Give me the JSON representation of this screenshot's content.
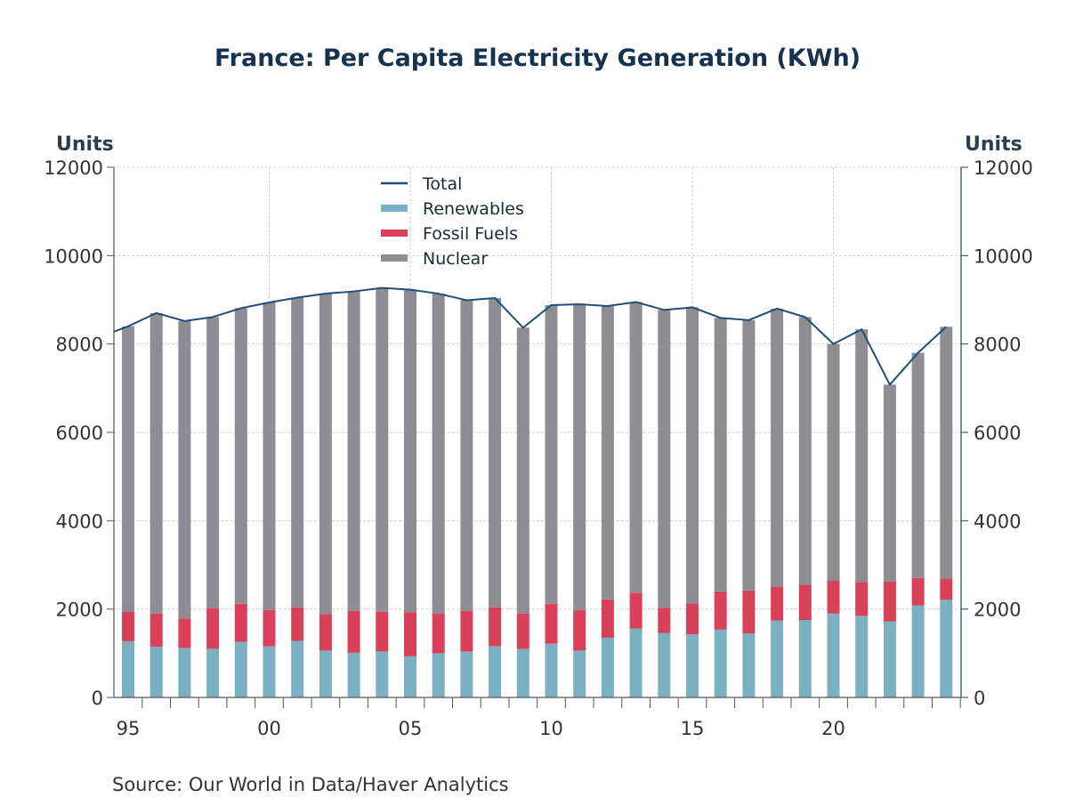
{
  "chart_data": {
    "type": "bar",
    "stacked": true,
    "title": "France: Per Capita Electricity Generation (KWh)",
    "left_axis_label": "Units",
    "right_axis_label": "Units",
    "source": "Source:  Our World in Data/Haver Analytics",
    "ylim": [
      0,
      12000
    ],
    "yticks": [
      "0",
      "2000",
      "4000",
      "6000",
      "8000",
      "10000",
      "12000"
    ],
    "ytick_values": [
      0,
      2000,
      4000,
      6000,
      8000,
      10000,
      12000
    ],
    "xtick_labels": [
      {
        "label": "95",
        "year": 1995
      },
      {
        "label": "00",
        "year": 2000
      },
      {
        "label": "05",
        "year": 2005
      },
      {
        "label": "10",
        "year": 2010
      },
      {
        "label": "15",
        "year": 2015
      },
      {
        "label": "20",
        "year": 2020
      }
    ],
    "grid": true,
    "legend_position": "top-center",
    "categories": [
      1995,
      1996,
      1997,
      1998,
      1999,
      2000,
      2001,
      2002,
      2003,
      2004,
      2005,
      2006,
      2007,
      2008,
      2009,
      2010,
      2011,
      2012,
      2013,
      2014,
      2015,
      2016,
      2017,
      2018,
      2019,
      2020,
      2021,
      2022,
      2023,
      2024
    ],
    "series": [
      {
        "name": "Renewables",
        "color": "#7bafc2",
        "kind": "bar",
        "values": [
          1270,
          1150,
          1120,
          1100,
          1260,
          1160,
          1280,
          1060,
          1010,
          1040,
          930,
          1000,
          1040,
          1160,
          1100,
          1220,
          1060,
          1350,
          1560,
          1460,
          1430,
          1540,
          1450,
          1740,
          1750,
          1900,
          1850,
          1720,
          2080,
          2210
        ]
      },
      {
        "name": "Fossil Fuels",
        "color": "#d9415a",
        "kind": "bar",
        "values": [
          670,
          750,
          660,
          920,
          860,
          820,
          760,
          830,
          950,
          900,
          1000,
          900,
          920,
          880,
          800,
          900,
          920,
          870,
          810,
          570,
          700,
          860,
          970,
          770,
          800,
          750,
          760,
          910,
          620,
          480
        ]
      },
      {
        "name": "Nuclear",
        "color": "#8e8d94",
        "kind": "bar",
        "values": [
          6460,
          6800,
          6740,
          6590,
          6690,
          6960,
          7010,
          7250,
          7230,
          7330,
          7300,
          7240,
          7030,
          7000,
          6470,
          6760,
          6920,
          6640,
          6580,
          6740,
          6700,
          6190,
          6120,
          6290,
          6060,
          5350,
          5720,
          4450,
          5100,
          5700
        ]
      },
      {
        "name": "Total",
        "color": "#1f4e79",
        "kind": "line",
        "values": [
          8400,
          8700,
          8520,
          8610,
          8810,
          8940,
          9050,
          9140,
          9190,
          9270,
          9230,
          9140,
          8990,
          9040,
          8370,
          8880,
          8900,
          8860,
          8950,
          8770,
          8830,
          8590,
          8540,
          8800,
          8610,
          8000,
          8330,
          7080,
          7800,
          8390
        ]
      }
    ],
    "legend_order": [
      "Total",
      "Renewables",
      "Fossil Fuels",
      "Nuclear"
    ]
  }
}
